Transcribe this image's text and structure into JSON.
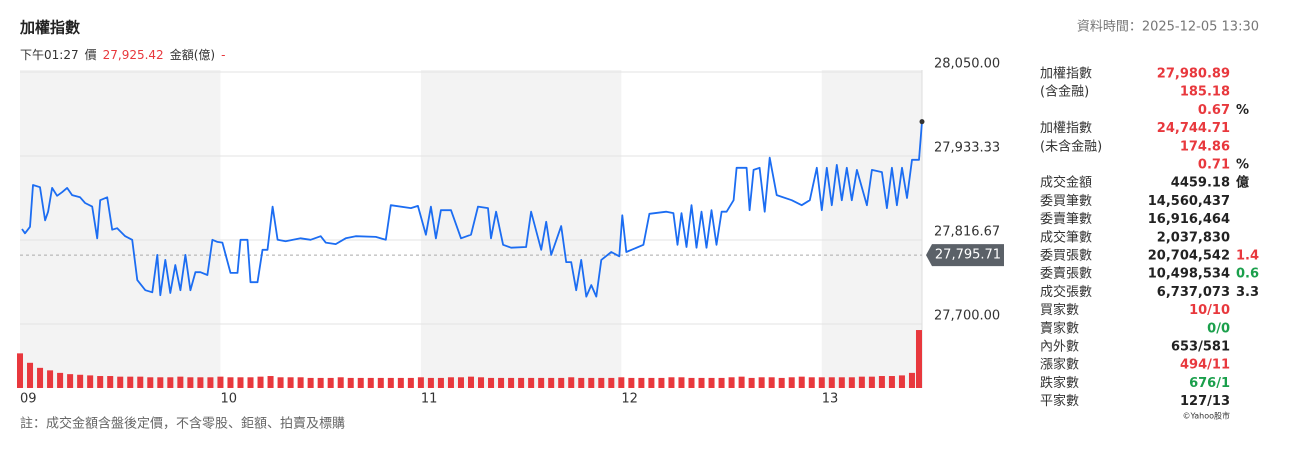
{
  "header": {
    "title": "加權指數",
    "timestamp": "資料時間：2025-12-05 13:30",
    "info": [
      {
        "text": "下午01:27"
      },
      {
        "text": "價"
      },
      {
        "text": "27,925.42",
        "color": "#e8383d"
      },
      {
        "text": "金額(億)"
      },
      {
        "text": "-",
        "color": "#e8383d"
      }
    ]
  },
  "chart_data": {
    "type": "line",
    "color": "#1c6df2",
    "x": [
      9.01,
      9.025,
      9.05,
      9.065,
      9.1,
      9.125,
      9.14,
      9.16,
      9.185,
      9.21,
      9.235,
      9.26,
      9.3,
      9.325,
      9.36,
      9.385,
      9.4,
      9.435,
      9.46,
      9.485,
      9.525,
      9.56,
      9.585,
      9.625,
      9.66,
      9.685,
      9.7,
      9.725,
      9.75,
      9.775,
      9.8,
      9.825,
      9.85,
      9.875,
      9.9,
      9.935,
      9.96,
      9.985,
      10.01,
      10.05,
      10.085,
      10.1,
      10.135,
      10.15,
      10.185,
      10.21,
      10.235,
      10.26,
      10.285,
      10.325,
      10.4,
      10.45,
      10.5,
      10.525,
      10.575,
      10.625,
      10.675,
      10.775,
      10.825,
      10.85,
      10.95,
      10.985,
      11.025,
      11.05,
      11.075,
      11.1,
      11.15,
      11.2,
      11.25,
      11.285,
      11.335,
      11.35,
      11.375,
      11.41,
      11.45,
      11.525,
      11.55,
      11.6,
      11.625,
      11.65,
      11.7,
      11.725,
      11.75,
      11.775,
      11.8,
      11.825,
      11.85,
      11.875,
      11.9,
      11.95,
      11.99,
      12.005,
      12.025,
      12.11,
      12.14,
      12.225,
      12.26,
      12.28,
      12.3,
      12.325,
      12.35,
      12.375,
      12.4,
      12.425,
      12.45,
      12.475,
      12.5,
      12.525,
      12.56,
      12.575,
      12.625,
      12.64,
      12.66,
      12.69,
      12.715,
      12.74,
      12.775,
      12.85,
      12.9,
      12.94,
      12.975,
      13.0,
      13.025,
      13.05,
      13.075,
      13.1,
      13.125,
      13.15,
      13.175,
      13.225,
      13.25,
      13.3,
      13.325,
      13.35,
      13.375,
      13.4,
      13.425,
      13.45,
      13.485,
      13.5
    ],
    "values": [
      27832,
      27826,
      27835,
      27893,
      27890,
      27844,
      27856,
      27889,
      27878,
      27883,
      27889,
      27879,
      27876,
      27868,
      27863,
      27819,
      27872,
      27876,
      27831,
      27833,
      27822,
      27817,
      27761,
      27747,
      27744,
      27796,
      27740,
      27789,
      27743,
      27782,
      27747,
      27796,
      27747,
      27772,
      27772,
      27768,
      27817,
      27814,
      27813,
      27771,
      27771,
      27817,
      27817,
      27758,
      27758,
      27803,
      27803,
      27863,
      27817,
      27815,
      27819,
      27817,
      27822,
      27813,
      27811,
      27819,
      27822,
      27821,
      27817,
      27865,
      27861,
      27864,
      27824,
      27863,
      27819,
      27858,
      27858,
      27819,
      27824,
      27863,
      27861,
      27819,
      27856,
      27810,
      27806,
      27807,
      27856,
      27803,
      27842,
      27796,
      27836,
      27786,
      27786,
      27747,
      27789,
      27738,
      27754,
      27738,
      27789,
      27800,
      27794,
      27851,
      27800,
      27810,
      27853,
      27856,
      27854,
      27810,
      27854,
      27807,
      27865,
      27806,
      27856,
      27806,
      27858,
      27810,
      27856,
      27856,
      27872,
      27917,
      27917,
      27858,
      27914,
      27917,
      27856,
      27931,
      27879,
      27872,
      27865,
      27872,
      27917,
      27858,
      27917,
      27865,
      27921,
      27872,
      27917,
      27872,
      27914,
      27865,
      27914,
      27911,
      27861,
      27917,
      27865,
      27917,
      27875,
      27928,
      27928,
      27981
    ],
    "xlim": [
      9,
      13.5
    ],
    "xticks": [
      {
        "value": 9,
        "label": "09"
      },
      {
        "value": 10,
        "label": "10"
      },
      {
        "value": 11,
        "label": "11"
      },
      {
        "value": 12,
        "label": "12"
      },
      {
        "value": 13,
        "label": "13"
      }
    ],
    "ylim": [
      27700,
      28050
    ],
    "yticks": [
      {
        "value": 27700,
        "label": "27,700.00"
      },
      {
        "value": 27816.67,
        "label": "27,816.67"
      },
      {
        "value": 27933.33,
        "label": "27,933.33"
      },
      {
        "value": 28050,
        "label": "28,050.00"
      }
    ],
    "grid": true,
    "reference": {
      "value": 27795.71,
      "label": "27,795.71"
    },
    "volume": {
      "color": "#e8383d",
      "ylim": [
        0,
        100
      ],
      "x": [
        9,
        9.05,
        9.1,
        9.15,
        9.2,
        9.25,
        9.3,
        9.35,
        9.4,
        9.45,
        9.5,
        9.55,
        9.6,
        9.65,
        9.7,
        9.75,
        9.8,
        9.85,
        9.9,
        9.95,
        10,
        10.05,
        10.1,
        10.15,
        10.2,
        10.25,
        10.3,
        10.35,
        10.4,
        10.45,
        10.5,
        10.55,
        10.6,
        10.65,
        10.7,
        10.75,
        10.8,
        10.85,
        10.9,
        10.95,
        11,
        11.05,
        11.1,
        11.15,
        11.2,
        11.25,
        11.3,
        11.35,
        11.4,
        11.45,
        11.5,
        11.55,
        11.6,
        11.65,
        11.7,
        11.75,
        11.8,
        11.85,
        11.9,
        11.95,
        12,
        12.05,
        12.1,
        12.15,
        12.2,
        12.25,
        12.3,
        12.35,
        12.4,
        12.45,
        12.5,
        12.55,
        12.6,
        12.65,
        12.7,
        12.75,
        12.8,
        12.85,
        12.9,
        12.95,
        13,
        13.05,
        13.1,
        13.15,
        13.2,
        13.25,
        13.3,
        13.35,
        13.4,
        13.45,
        13.5
      ],
      "values": [
        55,
        40,
        32,
        28,
        24,
        22,
        21,
        20,
        19,
        19,
        18,
        18,
        18,
        17,
        17,
        17,
        18,
        17,
        17,
        17,
        18,
        17,
        17,
        17,
        18,
        19,
        17,
        17,
        17,
        16,
        16,
        16,
        17,
        16,
        16,
        16,
        16,
        16,
        16,
        16,
        17,
        16,
        16,
        17,
        17,
        18,
        17,
        16,
        16,
        16,
        16,
        16,
        16,
        16,
        16,
        17,
        16,
        16,
        16,
        16,
        17,
        16,
        16,
        16,
        16,
        17,
        17,
        16,
        16,
        16,
        16,
        17,
        18,
        16,
        17,
        17,
        16,
        17,
        18,
        17,
        17,
        17,
        17,
        17,
        18,
        18,
        19,
        19,
        20,
        24,
        92
      ]
    }
  },
  "panel": {
    "rows": [
      {
        "label": "加權指數",
        "value": "27,980.89",
        "color": "#e8383d"
      },
      {
        "label": "(含金融)",
        "value": "185.18",
        "color": "#e8383d"
      },
      {
        "value": "0.67",
        "color": "#e8383d",
        "suffix": "%"
      },
      {
        "label": "加權指數",
        "value": "24,744.71",
        "color": "#e8383d"
      },
      {
        "label": "(未含金融)",
        "value": "174.86",
        "color": "#e8383d"
      },
      {
        "value": "0.71",
        "color": "#e8383d",
        "suffix": "%"
      },
      {
        "label": "成交金額",
        "value": "4459.18",
        "suffix": "億"
      },
      {
        "label": "委買筆數",
        "value": "14,560,437"
      },
      {
        "label": "委賣筆數",
        "value": "16,916,464"
      },
      {
        "label": "成交筆數",
        "value": "2,037,830"
      },
      {
        "label": "委買張數",
        "value": "20,704,542",
        "suffix": "1.4",
        "suffix_color": "#e8383d"
      },
      {
        "label": "委賣張數",
        "value": "10,498,534",
        "suffix": "0.6",
        "suffix_color": "#1a9f4b"
      },
      {
        "label": "成交張數",
        "value": "6,737,073",
        "suffix": "3.3"
      },
      {
        "label": "買家數",
        "value": "10/10",
        "color": "#e8383d"
      },
      {
        "label": "賣家數",
        "value": "0/0",
        "color": "#1a9f4b"
      },
      {
        "label": "內外數",
        "value": "653/581"
      },
      {
        "label": "漲家數",
        "value": "494/11",
        "color": "#e8383d"
      },
      {
        "label": "跌家數",
        "value": "676/1",
        "color": "#1a9f4b"
      },
      {
        "label": "平家數",
        "value": "127/13"
      }
    ],
    "credit": "©Yahoo股市"
  },
  "footer": {
    "note": "註：成交金額含盤後定價，不含零股、鉅額、拍賣及標購"
  }
}
